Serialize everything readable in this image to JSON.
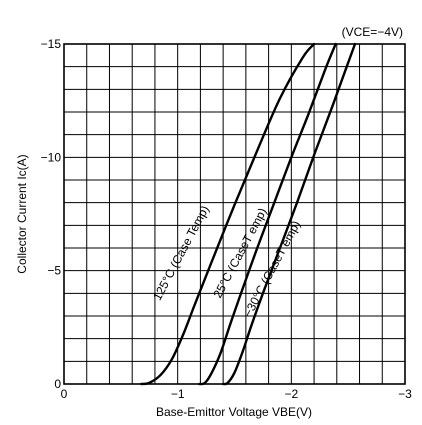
{
  "chart_data": {
    "type": "line",
    "title": "",
    "condition_note": "(VCE=−4V)",
    "xlabel": "Base-Emittor Voltage VBE(V)",
    "ylabel": "Collector Current Ic(A)",
    "xlim": [
      0,
      -3
    ],
    "ylim": [
      0,
      -15
    ],
    "x_ticks": [
      0,
      -1,
      -2,
      -3
    ],
    "x_tick_labels": [
      "0",
      "−1",
      "−2",
      "−3"
    ],
    "y_ticks": [
      0,
      -5,
      -10,
      -15
    ],
    "y_tick_labels": [
      "0",
      "−5",
      "−10",
      "−15"
    ],
    "x_minor_step": -0.2,
    "y_minor_step": -1,
    "grid": true,
    "legend": "none",
    "series": [
      {
        "name": "125°C (Case Temp)",
        "x": [
          -0.68,
          -0.75,
          -0.85,
          -0.95,
          -1.05,
          -1.15,
          -1.3,
          -1.5,
          -1.7,
          -1.9,
          -2.1,
          -2.2
        ],
        "y": [
          0.0,
          -0.05,
          -0.4,
          -1.1,
          -2.2,
          -3.5,
          -5.4,
          -7.9,
          -10.3,
          -12.6,
          -14.4,
          -15.0
        ]
      },
      {
        "name": "25°C (Case Temp)",
        "x": [
          -1.19,
          -1.24,
          -1.3,
          -1.38,
          -1.46,
          -1.55,
          -1.7,
          -1.85,
          -2.0,
          -2.15,
          -2.3,
          -2.39
        ],
        "y": [
          0.0,
          -0.05,
          -0.5,
          -1.4,
          -2.6,
          -3.9,
          -6.0,
          -8.0,
          -10.0,
          -11.9,
          -13.9,
          -15.0
        ]
      },
      {
        "name": "−30°C (Case Temp)",
        "x": [
          -1.4,
          -1.44,
          -1.5,
          -1.57,
          -1.65,
          -1.75,
          -1.9,
          -2.05,
          -2.2,
          -2.35,
          -2.48,
          -2.56
        ],
        "y": [
          0.0,
          -0.05,
          -0.5,
          -1.4,
          -2.6,
          -4.0,
          -6.0,
          -8.0,
          -10.1,
          -12.1,
          -13.9,
          -15.0
        ]
      }
    ],
    "curve_labels": [
      "125°C (Case Temp)",
      "25°C (CaseT emp)",
      "−30°C (CaseT emp)"
    ],
    "curve_label_anchor": [
      {
        "x": -1.06,
        "y": -5.7
      },
      {
        "x": -1.58,
        "y": -5.7
      },
      {
        "x": -1.86,
        "y": -5.0
      }
    ]
  }
}
